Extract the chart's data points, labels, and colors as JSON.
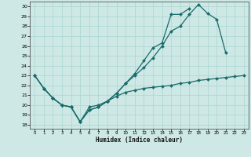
{
  "xlabel": "Humidex (Indice chaleur)",
  "bg_color": "#cde8e5",
  "line_color": "#1a6b6b",
  "grid_color": "#b0d8d4",
  "xlim": [
    -0.5,
    23.5
  ],
  "ylim": [
    17.6,
    30.5
  ],
  "xticks": [
    0,
    1,
    2,
    3,
    4,
    5,
    6,
    7,
    8,
    9,
    10,
    11,
    12,
    13,
    14,
    15,
    16,
    17,
    18,
    19,
    20,
    21,
    22,
    23
  ],
  "yticks": [
    18,
    19,
    20,
    21,
    22,
    23,
    24,
    25,
    26,
    27,
    28,
    29,
    30
  ],
  "line1": {
    "x": [
      0,
      1,
      2,
      3,
      4,
      5,
      6,
      7,
      8,
      9,
      10,
      11,
      12,
      13,
      14,
      15,
      16,
      17,
      18,
      19,
      20,
      21
    ],
    "y": [
      23,
      21.7,
      20.7,
      20.0,
      19.8,
      18.3,
      19.5,
      19.8,
      20.4,
      21.2,
      22.2,
      23.0,
      23.8,
      24.8,
      26.0,
      27.5,
      28.0,
      29.2,
      30.2,
      29.3,
      28.7,
      25.3
    ]
  },
  "line2": {
    "x": [
      0,
      1,
      2,
      3,
      4,
      5,
      6,
      7,
      8,
      9,
      10,
      11,
      12,
      13,
      14,
      15,
      16,
      17
    ],
    "y": [
      23,
      21.7,
      20.7,
      20.0,
      19.8,
      18.3,
      19.5,
      19.8,
      20.4,
      21.2,
      22.2,
      23.2,
      24.5,
      25.8,
      26.3,
      29.2,
      29.2,
      29.8
    ]
  },
  "line3": {
    "x": [
      0,
      1,
      2,
      3,
      4,
      5,
      6,
      7,
      8,
      9,
      10,
      11,
      12,
      13,
      14,
      15,
      16,
      17,
      18,
      19,
      20,
      21,
      22,
      23
    ],
    "y": [
      23,
      21.7,
      20.7,
      20.0,
      19.8,
      18.3,
      19.8,
      20.0,
      20.4,
      20.9,
      21.3,
      21.5,
      21.7,
      21.8,
      21.9,
      22.0,
      22.2,
      22.3,
      22.5,
      22.6,
      22.7,
      22.8,
      22.9,
      23.0
    ]
  }
}
